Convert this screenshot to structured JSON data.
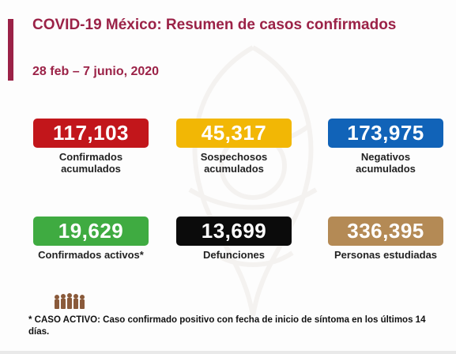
{
  "slide": {
    "title": "COVID-19 México: Resumen de casos confirmados",
    "date_range": "28 feb – 7 junio, 2020",
    "colors": {
      "title": "#9b2247",
      "dates": "#9b2247",
      "accent_bar": "#9b2247"
    },
    "stats": [
      {
        "value": "117,103",
        "label": "Confirmados acumulados",
        "color": "#c2161b"
      },
      {
        "value": "45,317",
        "label": "Sospechosos acumulados",
        "color": "#f2b705"
      },
      {
        "value": "173,975",
        "label": "Negativos acumulados",
        "color": "#1163b8"
      },
      {
        "value": "19,629",
        "label": "Confirmados activos*",
        "color": "#3fab41"
      },
      {
        "value": "13,699",
        "label": "Defunciones",
        "color": "#0b0b0b"
      },
      {
        "value": "336,395",
        "label": "Personas estudiadas",
        "color": "#b48a55"
      }
    ],
    "footnote": "* CASO ACTIVO: Caso confirmado positivo con fecha de inicio de síntoma en los últimos 14 días.",
    "icons": {
      "logo": "heroes-group-logo-icon",
      "watermark": "coat-of-arms-watermark-icon"
    }
  }
}
